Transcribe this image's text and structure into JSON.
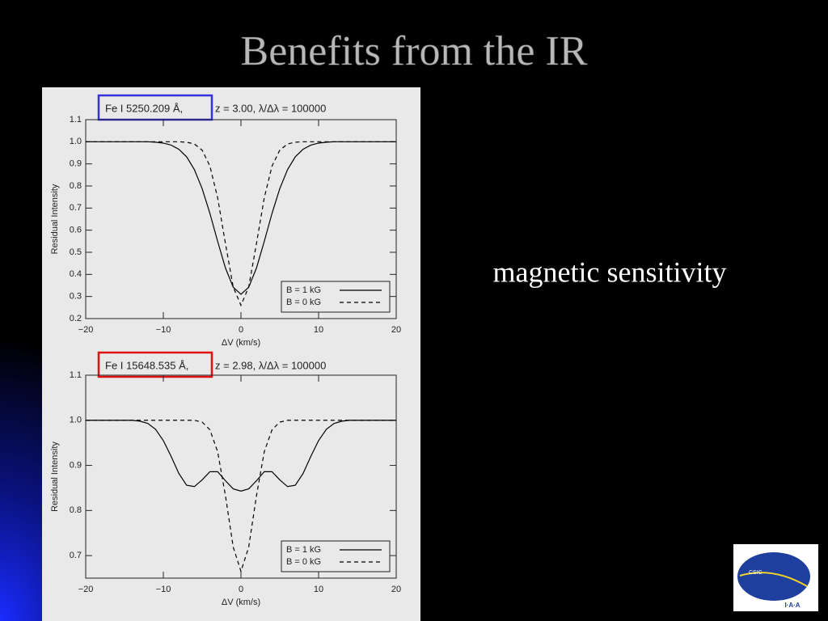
{
  "title": "Benefits from the IR",
  "text": "magnetic sensitivity",
  "logo": {
    "name": "I·A·A",
    "org": "CSIC"
  },
  "chart_data": [
    {
      "type": "line",
      "title": "Fe I 5250.209 Å,",
      "subtitle": "z = 3.00, λ/Δλ = 100000",
      "highlight_color": "#3333dd",
      "x_label": "ΔV (km/s)",
      "y_label": "Residual Intensity",
      "x": [
        -20,
        -19,
        -18,
        -17,
        -16,
        -15,
        -14,
        -13,
        -12,
        -11,
        -10,
        -9,
        -8,
        -7,
        -6,
        -5,
        -4,
        -3,
        -2,
        -1,
        0,
        1,
        2,
        3,
        4,
        5,
        6,
        7,
        8,
        9,
        10,
        11,
        12,
        13,
        14,
        15,
        16,
        17,
        18,
        19,
        20
      ],
      "series": [
        {
          "name": "B = 1 kG",
          "color": "#000000",
          "line_style": "solid",
          "values": [
            1,
            1,
            1,
            1,
            1,
            1,
            1,
            1,
            1,
            0.998,
            0.994,
            0.985,
            0.966,
            0.932,
            0.874,
            0.788,
            0.676,
            0.549,
            0.429,
            0.342,
            0.31,
            0.342,
            0.429,
            0.549,
            0.676,
            0.788,
            0.874,
            0.932,
            0.966,
            0.985,
            0.994,
            0.998,
            1,
            1,
            1,
            1,
            1,
            1,
            1,
            1,
            1
          ]
        },
        {
          "name": "B = 0 kG",
          "color": "#000000",
          "line_style": "dashed",
          "values": [
            1,
            1,
            1,
            1,
            1,
            1,
            1,
            1,
            1,
            1,
            1,
            1,
            1,
            0.998,
            0.99,
            0.962,
            0.89,
            0.746,
            0.54,
            0.343,
            0.26,
            0.343,
            0.54,
            0.746,
            0.89,
            0.962,
            0.99,
            0.998,
            1,
            1,
            1,
            1,
            1,
            1,
            1,
            1,
            1,
            1,
            1,
            1,
            1
          ]
        }
      ],
      "xlim": [
        -20,
        20
      ],
      "xticks": [
        {
          "value": -20,
          "label": "−20"
        },
        {
          "value": -10,
          "label": "−10"
        },
        0,
        10,
        20
      ],
      "ylim": [
        0.2,
        1.1
      ],
      "yticks": [
        0.2,
        0.3,
        0.4,
        0.5,
        0.6,
        0.7,
        0.8,
        0.9,
        {
          "value": 1,
          "label": "1.0"
        },
        1.1
      ],
      "legend": "lower right"
    },
    {
      "type": "line",
      "title": "Fe I 15648.535 Å,",
      "subtitle": "z = 2.98, λ/Δλ = 100000",
      "highlight_color": "#dd1111",
      "x_label": "ΔV (km/s)",
      "y_label": "Residual Intensity",
      "x": [
        -20,
        -19,
        -18,
        -17,
        -16,
        -15,
        -14,
        -13,
        -12,
        -11,
        -10,
        -9,
        -8,
        -7,
        -6,
        -5,
        -4,
        -3,
        -2,
        -1,
        0,
        1,
        2,
        3,
        4,
        5,
        6,
        7,
        8,
        9,
        10,
        11,
        12,
        13,
        14,
        15,
        16,
        17,
        18,
        19,
        20
      ],
      "series": [
        {
          "name": "B = 1 kG",
          "color": "#000000",
          "line_style": "solid",
          "values": [
            1,
            1,
            1,
            1,
            1,
            1,
            1,
            0.998,
            0.993,
            0.98,
            0.955,
            0.92,
            0.882,
            0.856,
            0.853,
            0.868,
            0.886,
            0.886,
            0.866,
            0.848,
            0.843,
            0.848,
            0.866,
            0.886,
            0.886,
            0.868,
            0.853,
            0.856,
            0.882,
            0.92,
            0.955,
            0.98,
            0.993,
            0.998,
            1,
            1,
            1,
            1,
            1,
            1,
            1
          ]
        },
        {
          "name": "B = 0 kG",
          "color": "#000000",
          "line_style": "dashed",
          "values": [
            1,
            1,
            1,
            1,
            1,
            1,
            1,
            1,
            1,
            1,
            1,
            1,
            1,
            1,
            1,
            0.996,
            0.979,
            0.93,
            0.833,
            0.719,
            0.665,
            0.719,
            0.833,
            0.93,
            0.979,
            0.996,
            1,
            1,
            1,
            1,
            1,
            1,
            1,
            1,
            1,
            1,
            1,
            1,
            1,
            1,
            1
          ]
        }
      ],
      "xlim": [
        -20,
        20
      ],
      "xticks": [
        {
          "value": -20,
          "label": "−20"
        },
        {
          "value": -10,
          "label": "−10"
        },
        0,
        10,
        20
      ],
      "ylim": [
        0.65,
        1.1
      ],
      "yticks": [
        0.7,
        0.8,
        0.9,
        {
          "value": 1,
          "label": "1.0"
        },
        1.1
      ],
      "legend": "lower right"
    }
  ]
}
